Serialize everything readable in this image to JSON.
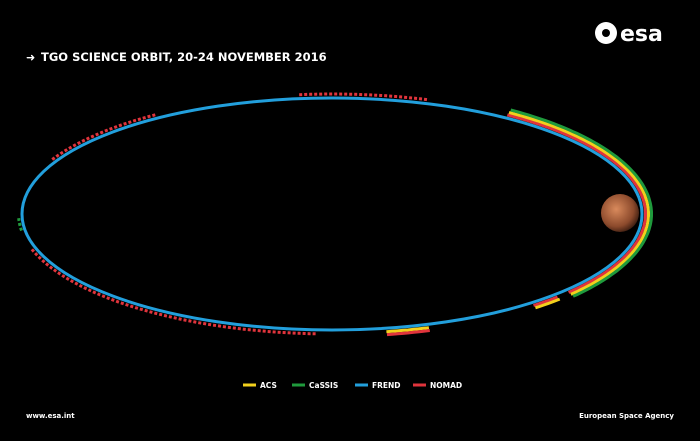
{
  "header": {
    "title": "TGO SCIENCE ORBIT, 20-24 NOVEMBER 2016",
    "logo": "esa"
  },
  "legend": [
    {
      "label": "ACS",
      "color": "#f2d01c"
    },
    {
      "label": "CaSSIS",
      "color": "#1f9a3c"
    },
    {
      "label": "FREND",
      "color": "#229fdc"
    },
    {
      "label": "NOMAD",
      "color": "#e0343c"
    }
  ],
  "footer": {
    "left": "www.esa.int",
    "right": "European Space Agency"
  }
}
